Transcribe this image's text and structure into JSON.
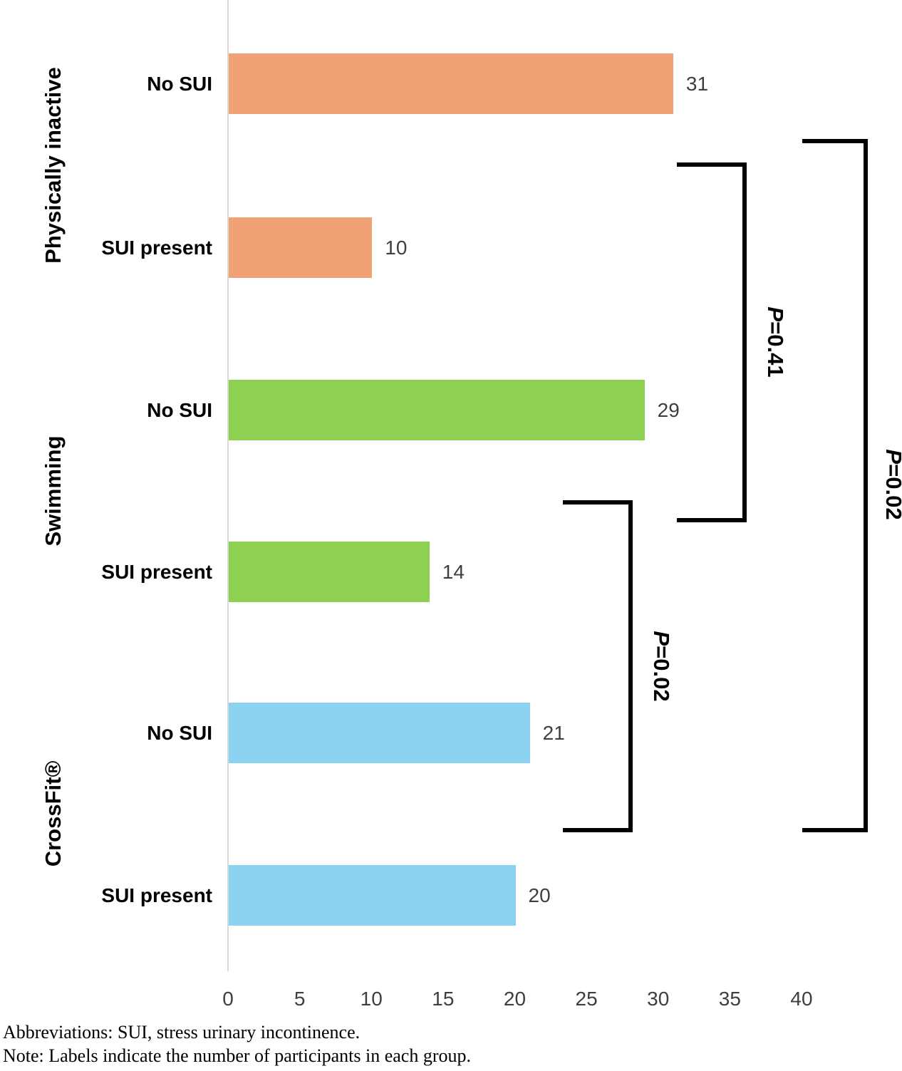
{
  "chart_data": {
    "type": "bar",
    "orientation": "horizontal",
    "title": "",
    "xlabel": "",
    "ylabel": "",
    "xlim": [
      0,
      40
    ],
    "grid": false,
    "legend": false,
    "x_axis": {
      "min": 0,
      "max": 40,
      "ticks": [
        0,
        5,
        10,
        15,
        20,
        25,
        30,
        35,
        40
      ]
    },
    "groups": [
      {
        "label": "Physically inactive",
        "color": "#f1a176",
        "bars": [
          {
            "label": "No SUI",
            "value": 31
          },
          {
            "label": "SUI present",
            "value": 10
          }
        ]
      },
      {
        "label": "Swimming",
        "color": "#8ed051",
        "bars": [
          {
            "label": "No SUI",
            "value": 29
          },
          {
            "label": "SUI present",
            "value": 14
          }
        ]
      },
      {
        "label": "CrossFit®",
        "color": "#8bd2f0",
        "bars": [
          {
            "label": "No SUI",
            "value": 21
          },
          {
            "label": "SUI present",
            "value": 20
          }
        ]
      }
    ],
    "annotations": [
      {
        "label": "P=0.41",
        "comparison": "Physically inactive vs Swimming"
      },
      {
        "label": "P=0.02",
        "comparison": "Swimming vs CrossFit®"
      },
      {
        "label": "P=0.02",
        "comparison": "Physically inactive vs CrossFit®"
      }
    ]
  },
  "footer": {
    "abbreviations": "Abbreviations: SUI, stress urinary incontinence.",
    "note": "Note: Labels indicate the number of participants in each group."
  }
}
